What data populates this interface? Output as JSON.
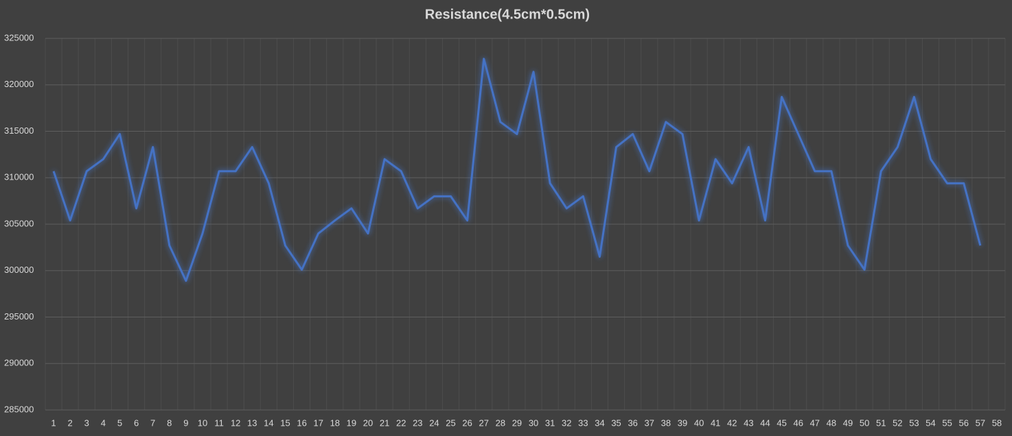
{
  "chart_data": {
    "type": "line",
    "title": "Resistance(4.5cm*0.5cm)",
    "categories": [
      "1",
      "2",
      "3",
      "4",
      "5",
      "6",
      "7",
      "8",
      "9",
      "10",
      "11",
      "12",
      "13",
      "14",
      "15",
      "16",
      "17",
      "18",
      "19",
      "20",
      "21",
      "22",
      "23",
      "24",
      "25",
      "26",
      "27",
      "28",
      "29",
      "30",
      "31",
      "32",
      "33",
      "34",
      "35",
      "36",
      "37",
      "38",
      "39",
      "40",
      "41",
      "42",
      "43",
      "44",
      "45",
      "46",
      "47",
      "48",
      "49",
      "50",
      "51",
      "52",
      "53",
      "54",
      "55",
      "56",
      "57",
      "58"
    ],
    "values": [
      310700,
      305400,
      310700,
      312000,
      314700,
      306700,
      313300,
      302700,
      298900,
      304000,
      310700,
      310700,
      313300,
      309400,
      302700,
      300100,
      304000,
      305400,
      306700,
      304000,
      312000,
      310700,
      306700,
      308000,
      308000,
      305400,
      322800,
      316000,
      314700,
      321400,
      309400,
      306700,
      308000,
      301500,
      313300,
      314700,
      310700,
      316000,
      314700,
      305400,
      312000,
      309400,
      313300,
      305400,
      318700,
      314700,
      310700,
      310700,
      302700,
      300100,
      310700,
      313300,
      318700,
      312000,
      309400,
      309400,
      302700,
      null
    ],
    "color": "#4472c4",
    "ylim": [
      285000,
      325000
    ],
    "yticks": [
      285000,
      290000,
      295000,
      300000,
      305000,
      310000,
      315000,
      320000,
      325000
    ],
    "grid": true
  }
}
